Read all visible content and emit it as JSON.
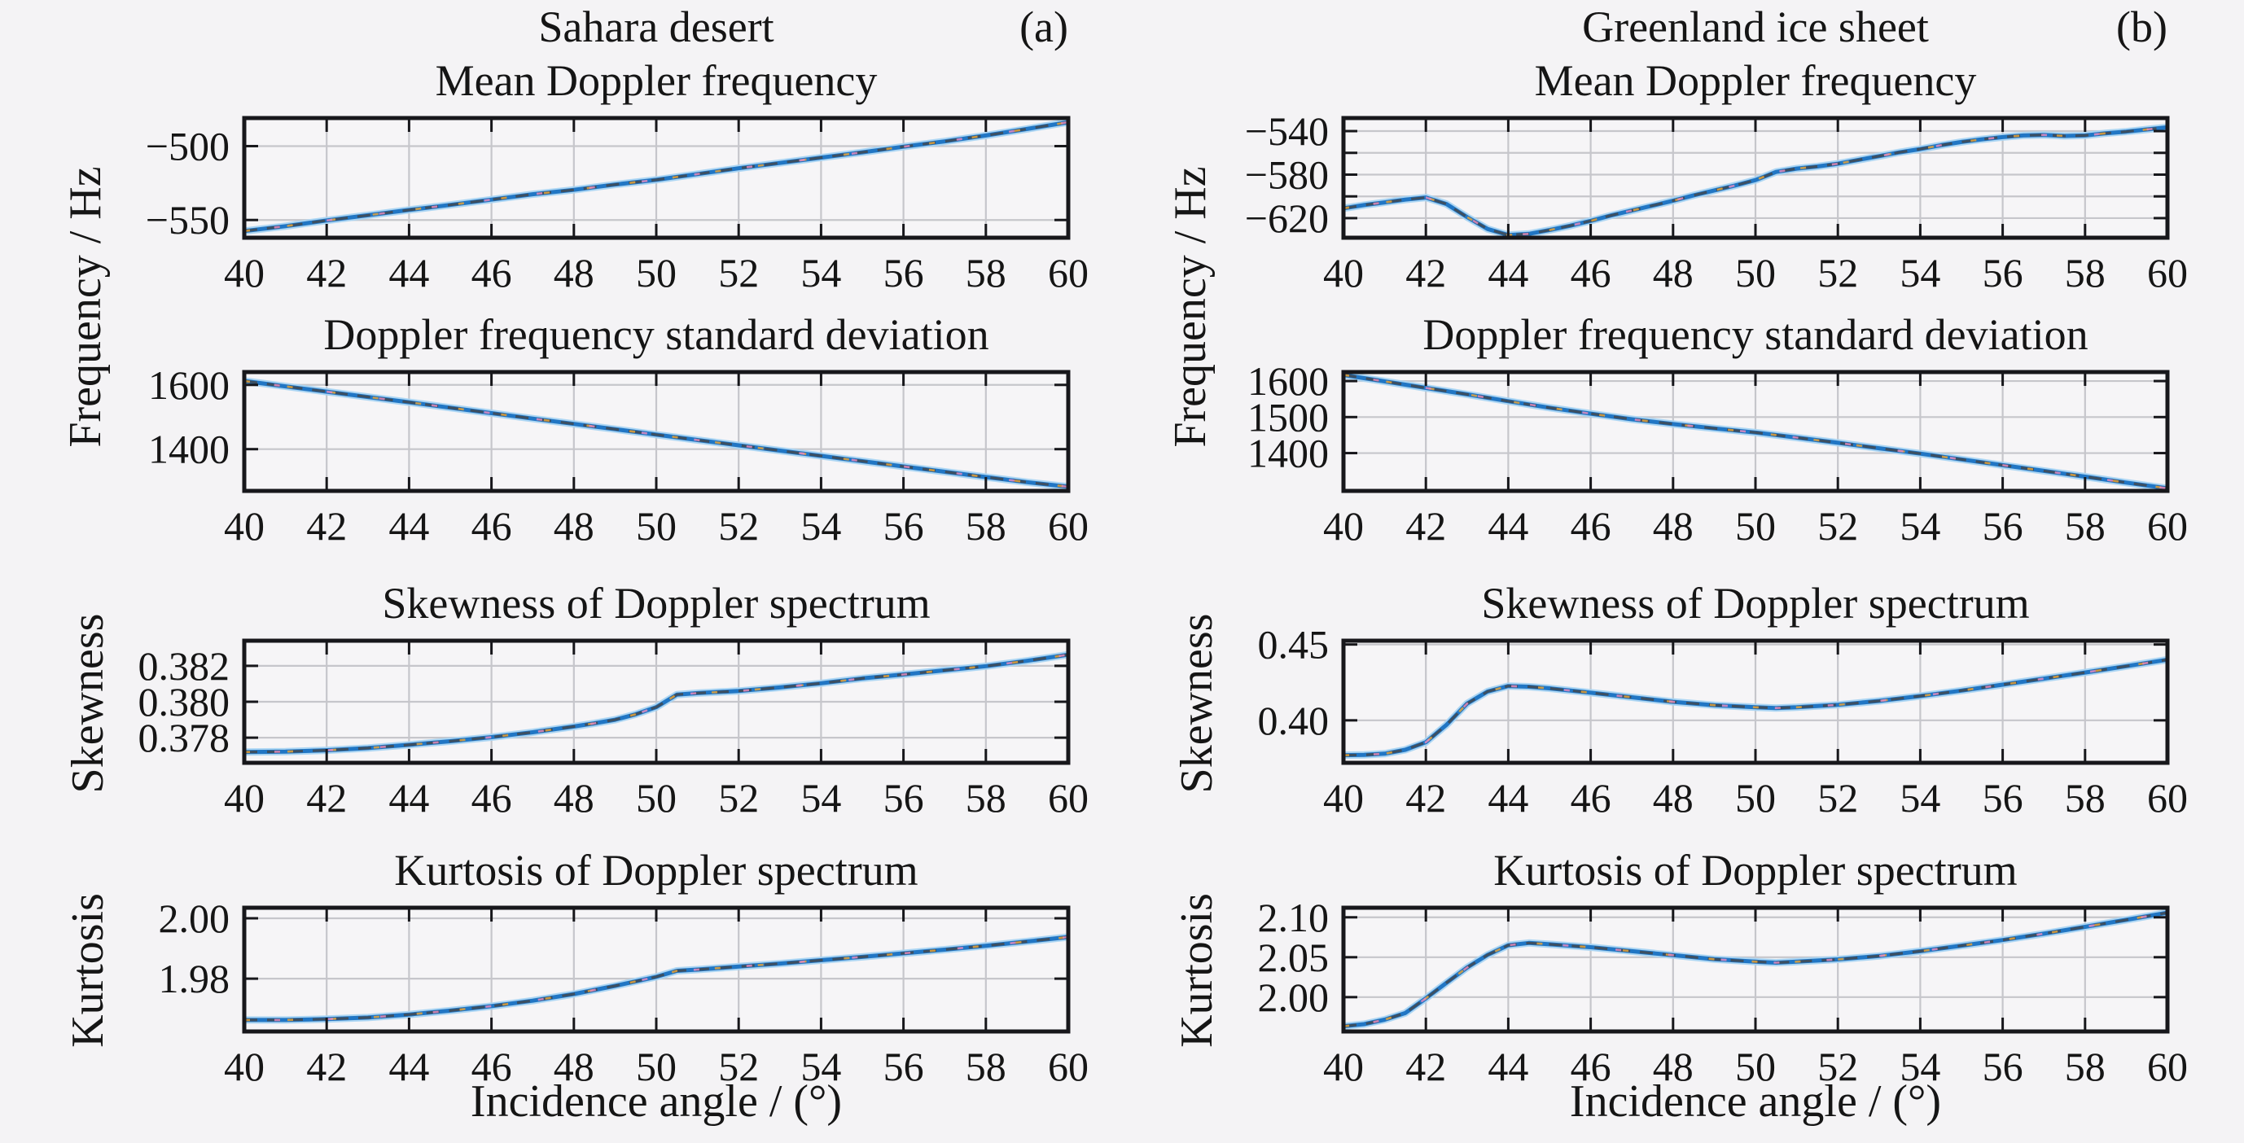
{
  "figure": {
    "panels": [
      {
        "title": "Sahara desert",
        "tag": "(a)"
      },
      {
        "title": "Greenland ice sheet",
        "tag": "(b)"
      }
    ],
    "shared_ylabel": "Frequency / Hz",
    "xlabel": "Incidence angle / (°)"
  },
  "style": {
    "bg": "#f4f3f5",
    "plot_bg": "#f6f5f7",
    "frame": "#17171b",
    "grid": "#c6c6cb",
    "text": "#151515",
    "line_main": "#2176c4",
    "line_halo": "#a9d4f2",
    "line_dash": "#3f4b58",
    "line_accent1": "#e2a23c",
    "line_accent2": "#e08bbf"
  },
  "chart_data": [
    {
      "id": "sahara-mean-doppler-frequency",
      "panel": "Sahara desert",
      "type": "line",
      "title": "Mean Doppler frequency",
      "ylabel": "Frequency / Hz",
      "xlabel": "Incidence angle / (°)",
      "xlim": [
        40,
        60
      ],
      "xticks": [
        40,
        42,
        44,
        46,
        48,
        50,
        52,
        54,
        56,
        58,
        60
      ],
      "ylim": [
        -562,
        -481
      ],
      "gridlines_y": [
        -550,
        -500
      ],
      "yticks": [
        {
          "value": -500,
          "label": "−500"
        },
        {
          "value": -550,
          "label": "−550"
        }
      ],
      "x": [
        40,
        41,
        42,
        43,
        44,
        45,
        46,
        47,
        48,
        49,
        50,
        51,
        52,
        53,
        54,
        55,
        56,
        57,
        58,
        59,
        60
      ],
      "y": [
        -557.5,
        -554.2,
        -550.3,
        -546.8,
        -543.2,
        -539.8,
        -536.2,
        -532.6,
        -529.6,
        -526.0,
        -522.8,
        -518.9,
        -515.0,
        -511.4,
        -507.8,
        -504.2,
        -500.4,
        -496.8,
        -492.8,
        -488.4,
        -483.8
      ]
    },
    {
      "id": "sahara-doppler-frequency-standard-deviation",
      "panel": "Sahara desert",
      "type": "line",
      "title": "Doppler frequency standard deviation",
      "ylabel": "Frequency / Hz",
      "xlabel": "Incidence angle / (°)",
      "xlim": [
        40,
        60
      ],
      "xticks": [
        40,
        42,
        44,
        46,
        48,
        50,
        52,
        54,
        56,
        58,
        60
      ],
      "ylim": [
        1270,
        1640
      ],
      "gridlines_y": [
        1400,
        1600
      ],
      "yticks": [
        {
          "value": 1600,
          "label": "1600"
        },
        {
          "value": 1400,
          "label": "1400"
        }
      ],
      "x": [
        40,
        41,
        42,
        43,
        44,
        45,
        46,
        47,
        48,
        49,
        50,
        51,
        52,
        53,
        54,
        55,
        56,
        57,
        58,
        59,
        60
      ],
      "y": [
        1612,
        1595.5,
        1579,
        1562.5,
        1546,
        1529,
        1512,
        1495,
        1478.5,
        1462,
        1445,
        1428.5,
        1412,
        1395.5,
        1379,
        1362.5,
        1346,
        1329.5,
        1313,
        1297,
        1283
      ]
    },
    {
      "id": "sahara-skewness-of-doppler-spectrum",
      "panel": "Sahara desert",
      "type": "line",
      "title": "Skewness of Doppler spectrum",
      "ylabel": "Skewness",
      "xlabel": "Incidence angle / (°)",
      "xlim": [
        40,
        60
      ],
      "xticks": [
        40,
        42,
        44,
        46,
        48,
        50,
        52,
        54,
        56,
        58,
        60
      ],
      "ylim": [
        0.3766,
        0.3834
      ],
      "gridlines_y": [
        0.378,
        0.38,
        0.382
      ],
      "yticks": [
        {
          "value": 0.382,
          "label": "0.382"
        },
        {
          "value": 0.38,
          "label": "0.380"
        },
        {
          "value": 0.378,
          "label": "0.378"
        }
      ],
      "x": [
        40,
        41,
        42,
        43,
        44,
        45,
        46,
        47,
        48,
        48.5,
        49,
        49.5,
        50,
        50.5,
        51,
        52,
        53,
        54,
        55,
        56,
        57,
        58,
        59,
        60
      ],
      "y": [
        0.3772,
        0.37722,
        0.3773,
        0.37742,
        0.3776,
        0.3778,
        0.37803,
        0.3783,
        0.37862,
        0.3788,
        0.379,
        0.3793,
        0.3797,
        0.3804,
        0.38048,
        0.3806,
        0.3808,
        0.38103,
        0.3813,
        0.38152,
        0.38175,
        0.38198,
        0.38228,
        0.38262
      ]
    },
    {
      "id": "sahara-kurtosis-of-doppler-spectrum",
      "panel": "Sahara desert",
      "type": "line",
      "title": "Kurtosis of Doppler spectrum",
      "ylabel": "Kurtosis",
      "xlabel": "Incidence angle / (°)",
      "xlim": [
        40,
        60
      ],
      "xticks": [
        40,
        42,
        44,
        46,
        48,
        50,
        52,
        54,
        56,
        58,
        60
      ],
      "ylim": [
        1.9625,
        2.0035
      ],
      "gridlines_y": [
        1.98,
        2.0
      ],
      "yticks": [
        {
          "value": 2.0,
          "label": "2.00"
        },
        {
          "value": 1.98,
          "label": "1.98"
        }
      ],
      "x": [
        40,
        41,
        42,
        43,
        44,
        45,
        46,
        47,
        48,
        49,
        50,
        50.5,
        51,
        52,
        53,
        54,
        55,
        56,
        57,
        58,
        59,
        60
      ],
      "y": [
        1.9663,
        1.9663,
        1.9666,
        1.9671,
        1.9681,
        1.9694,
        1.9709,
        1.9727,
        1.9749,
        1.9776,
        1.9806,
        1.9826,
        1.983,
        1.984,
        1.985,
        1.9861,
        1.9872,
        1.9884,
        1.9896,
        1.9909,
        1.9923,
        1.9938
      ]
    },
    {
      "id": "greenland-mean-doppler-frequency",
      "panel": "Greenland ice sheet",
      "type": "line",
      "title": "Mean Doppler frequency",
      "ylabel": "Frequency / Hz",
      "xlabel": "Incidence angle / (°)",
      "xlim": [
        40,
        60
      ],
      "xticks": [
        40,
        42,
        44,
        46,
        48,
        50,
        52,
        54,
        56,
        58,
        60
      ],
      "ylim": [
        -638,
        -528
      ],
      "gridlines_y": [
        -620,
        -600,
        -580,
        -560,
        -540
      ],
      "yticks": [
        {
          "value": -540,
          "label": "−540"
        },
        {
          "value": -580,
          "label": "−580"
        },
        {
          "value": -620,
          "label": "−620"
        }
      ],
      "x": [
        40,
        40.5,
        41,
        41.5,
        42,
        42.5,
        43,
        43.5,
        44,
        44.5,
        45,
        45.5,
        46,
        46.5,
        47,
        47.5,
        48,
        48.5,
        49,
        49.5,
        50,
        50.5,
        51,
        51.5,
        52,
        52.5,
        53,
        53.5,
        54,
        54.5,
        55,
        55.5,
        56,
        56.5,
        57,
        57.5,
        58,
        58.5,
        59,
        59.5,
        60
      ],
      "y": [
        -611,
        -608,
        -605.5,
        -603,
        -601,
        -607,
        -619,
        -630,
        -635.5,
        -634.5,
        -631,
        -627,
        -622.5,
        -617.5,
        -613,
        -608.5,
        -604,
        -599,
        -594.5,
        -590,
        -585,
        -577.5,
        -574.5,
        -572.5,
        -570,
        -566.5,
        -563,
        -559.5,
        -556.5,
        -553,
        -550,
        -547.5,
        -545.5,
        -544,
        -543.5,
        -544.5,
        -544,
        -542,
        -540.5,
        -538.5,
        -536.5
      ]
    },
    {
      "id": "greenland-doppler-frequency-standard-deviation",
      "panel": "Greenland ice sheet",
      "type": "line",
      "title": "Doppler frequency standard deviation",
      "ylabel": "Frequency / Hz",
      "xlabel": "Incidence angle / (°)",
      "xlim": [
        40,
        60
      ],
      "xticks": [
        40,
        42,
        44,
        46,
        48,
        50,
        52,
        54,
        56,
        58,
        60
      ],
      "ylim": [
        1295,
        1625
      ],
      "gridlines_y": [
        1400,
        1500,
        1600
      ],
      "yticks": [
        {
          "value": 1600,
          "label": "1600"
        },
        {
          "value": 1500,
          "label": "1500"
        },
        {
          "value": 1400,
          "label": "1400"
        }
      ],
      "x": [
        40,
        41,
        42,
        43,
        44,
        45,
        46,
        47,
        48,
        49,
        50,
        51,
        52,
        53,
        54,
        55,
        56,
        57,
        58,
        59,
        60
      ],
      "y": [
        1617,
        1599,
        1581,
        1563,
        1544,
        1526,
        1509.5,
        1494,
        1480.5,
        1468.5,
        1457,
        1443,
        1428.5,
        1413.5,
        1398.5,
        1382.5,
        1366.5,
        1350.5,
        1334.5,
        1318,
        1302
      ]
    },
    {
      "id": "greenland-skewness-of-doppler-spectrum",
      "panel": "Greenland ice sheet",
      "type": "line",
      "title": "Skewness of Doppler spectrum",
      "ylabel": "Skewness",
      "xlabel": "Incidence angle / (°)",
      "xlim": [
        40,
        60
      ],
      "xticks": [
        40,
        42,
        44,
        46,
        48,
        50,
        52,
        54,
        56,
        58,
        60
      ],
      "ylim": [
        0.372,
        0.4525
      ],
      "gridlines_y": [
        0.4,
        0.45
      ],
      "yticks": [
        {
          "value": 0.45,
          "label": "0.45"
        },
        {
          "value": 0.4,
          "label": "0.40"
        }
      ],
      "x": [
        40,
        40.5,
        41,
        41.5,
        42,
        42.5,
        43,
        43.5,
        44,
        44.5,
        45,
        46,
        47,
        48,
        49,
        50,
        50.5,
        51,
        52,
        53,
        54,
        55,
        56,
        57,
        58,
        59,
        60
      ],
      "y": [
        0.377,
        0.3772,
        0.378,
        0.3806,
        0.3856,
        0.397,
        0.411,
        0.419,
        0.4226,
        0.4222,
        0.4211,
        0.4182,
        0.4152,
        0.4122,
        0.41,
        0.4086,
        0.4081,
        0.4086,
        0.4102,
        0.4128,
        0.416,
        0.4196,
        0.4235,
        0.4275,
        0.4315,
        0.4357,
        0.44
      ]
    },
    {
      "id": "greenland-kurtosis-of-doppler-spectrum",
      "panel": "Greenland ice sheet",
      "type": "line",
      "title": "Kurtosis of Doppler spectrum",
      "ylabel": "Kurtosis",
      "xlabel": "Incidence angle / (°)",
      "xlim": [
        40,
        60
      ],
      "xticks": [
        40,
        42,
        44,
        46,
        48,
        50,
        52,
        54,
        56,
        58,
        60
      ],
      "ylim": [
        1.957,
        2.112
      ],
      "gridlines_y": [
        2.0,
        2.05,
        2.1
      ],
      "yticks": [
        {
          "value": 2.1,
          "label": "2.10"
        },
        {
          "value": 2.05,
          "label": "2.05"
        },
        {
          "value": 2.0,
          "label": "2.00"
        }
      ],
      "x": [
        40,
        40.5,
        41,
        41.5,
        42,
        42.5,
        43,
        43.5,
        44,
        44.5,
        45,
        46,
        47,
        48,
        49,
        50,
        50.5,
        51,
        52,
        53,
        54,
        55,
        56,
        57,
        58,
        59,
        60
      ],
      "y": [
        1.9635,
        1.9662,
        1.9718,
        1.98,
        1.9985,
        2.018,
        2.037,
        2.053,
        2.065,
        2.0678,
        2.0662,
        2.0625,
        2.0575,
        2.0525,
        2.0475,
        2.0444,
        2.0432,
        2.0444,
        2.0472,
        2.0515,
        2.0575,
        2.0645,
        2.0715,
        2.0795,
        2.088,
        2.0968,
        2.1058
      ]
    }
  ]
}
